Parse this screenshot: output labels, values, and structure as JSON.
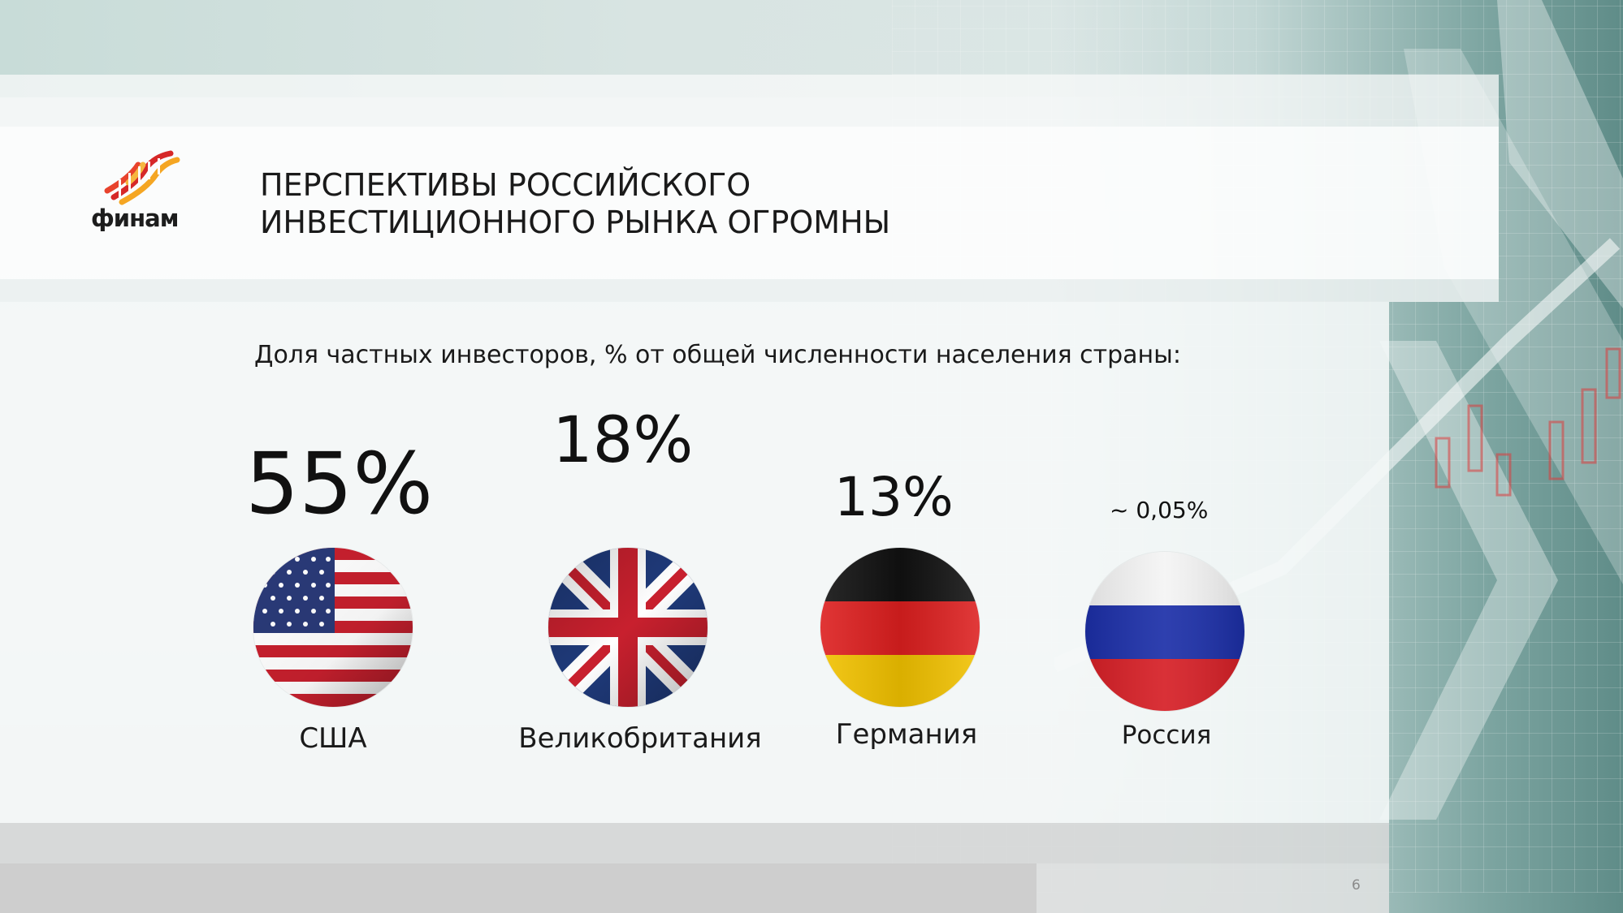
{
  "slide": {
    "logo_text": "финам",
    "title_line1": "ПЕРСПЕКТИВЫ РОССИЙСКОГО",
    "title_line2": "ИНВЕСТИЦИОННОГО РЫНКА ОГРОМНЫ",
    "subtitle": "Доля частных инвесторов, % от общей численности населения страны:",
    "page_number": "6"
  },
  "countries": [
    {
      "name": "США",
      "value_label": "55%",
      "value": 55,
      "icon": "usa-flag-icon"
    },
    {
      "name": "Великобритания",
      "value_label": "18%",
      "value": 18,
      "icon": "uk-flag-icon"
    },
    {
      "name": "Германия",
      "value_label": "13%",
      "value": 13,
      "icon": "germany-flag-icon"
    },
    {
      "name": "Россия",
      "value_label": "~ 0,05%",
      "value": 0.05,
      "icon": "russia-flag-icon"
    }
  ],
  "colors": {
    "logo_red": "#d62828",
    "logo_orange": "#f5a623",
    "text": "#1a1a1a"
  }
}
